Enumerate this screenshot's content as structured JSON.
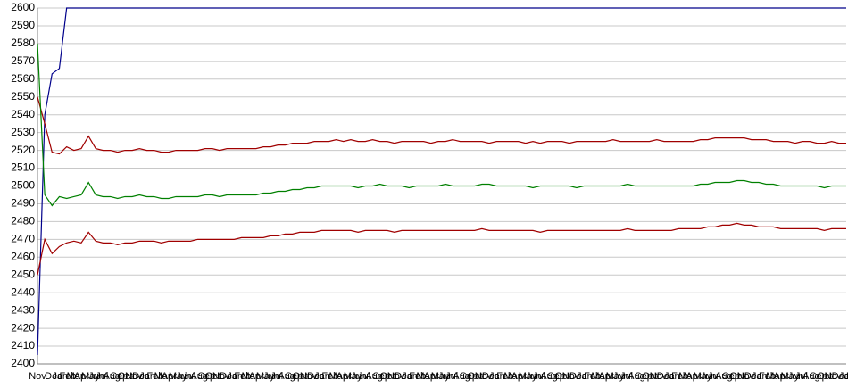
{
  "chart_data": {
    "type": "line",
    "categories": [
      "Nov",
      "Dec",
      "Jan",
      "Feb",
      "Mar",
      "Apr",
      "May",
      "Jun",
      "Jul",
      "Aug",
      "Sep",
      "Oct",
      "Nov",
      "Dec",
      "Jan",
      "Feb",
      "Mar",
      "Apr",
      "May",
      "Jun",
      "Jul",
      "Aug",
      "Sep",
      "Oct",
      "Nov",
      "Dec",
      "Jan",
      "Feb",
      "Mar",
      "Apr",
      "May",
      "Jun",
      "Jul",
      "Aug",
      "Sep",
      "Oct",
      "Nov",
      "Dec",
      "Jan",
      "Feb",
      "Mar",
      "Apr",
      "May",
      "Jun",
      "Jul",
      "Aug",
      "Sep",
      "Oct",
      "Nov",
      "Dec",
      "Jan",
      "Feb",
      "Mar",
      "Apr",
      "May",
      "Jun",
      "Jul",
      "Aug",
      "Sep",
      "Oct",
      "Nov",
      "Dec",
      "Jan",
      "Feb",
      "Mar",
      "Apr",
      "May",
      "Jun",
      "Jul",
      "Aug",
      "Sep",
      "Oct",
      "Nov",
      "Dec",
      "Jan",
      "Feb",
      "Mar",
      "Apr",
      "May",
      "Jun",
      "Jul",
      "Aug",
      "Sep",
      "Oct",
      "Nov",
      "Dec",
      "Jan",
      "Feb",
      "Mar",
      "Apr",
      "May",
      "Jun",
      "Jul",
      "Aug",
      "Sep",
      "Oct",
      "Nov",
      "Dec",
      "Jan",
      "Feb",
      "Mar",
      "Apr",
      "May",
      "Jun",
      "Jul",
      "Aug",
      "Sep",
      "Oct",
      "Nov",
      "Dec",
      "Jan",
      "Feb"
    ],
    "series": [
      {
        "color": "#00008b",
        "values": [
          2405,
          2540,
          2563,
          2566,
          2600,
          2600,
          2600,
          2600,
          2600,
          2600,
          2600,
          2600,
          2600,
          2600,
          2600,
          2600,
          2600,
          2600,
          2600,
          2600,
          2600,
          2600,
          2600,
          2600,
          2600,
          2600,
          2600,
          2600,
          2600,
          2600,
          2600,
          2600,
          2600,
          2600,
          2600,
          2600,
          2600,
          2600,
          2600,
          2600,
          2600,
          2600,
          2600,
          2600,
          2600,
          2600,
          2600,
          2600,
          2600,
          2600,
          2600,
          2600,
          2600,
          2600,
          2600,
          2600,
          2600,
          2600,
          2600,
          2600,
          2600,
          2600,
          2600,
          2600,
          2600,
          2600,
          2600,
          2600,
          2600,
          2600,
          2600,
          2600,
          2600,
          2600,
          2600,
          2600,
          2600,
          2600,
          2600,
          2600,
          2600,
          2600,
          2600,
          2600,
          2600,
          2600,
          2600,
          2600,
          2600,
          2600,
          2600,
          2600,
          2600,
          2600,
          2600,
          2600,
          2600,
          2600,
          2600,
          2600,
          2600,
          2600,
          2600,
          2600,
          2600,
          2600,
          2600,
          2600,
          2600,
          2600,
          2600,
          2600
        ]
      },
      {
        "color": "#a00000",
        "values": [
          2550,
          2535,
          2519,
          2518,
          2522,
          2520,
          2521,
          2528,
          2521,
          2520,
          2520,
          2519,
          2520,
          2520,
          2521,
          2520,
          2520,
          2519,
          2519,
          2520,
          2520,
          2520,
          2520,
          2521,
          2521,
          2520,
          2521,
          2521,
          2521,
          2521,
          2521,
          2522,
          2522,
          2523,
          2523,
          2524,
          2524,
          2524,
          2525,
          2525,
          2525,
          2526,
          2525,
          2526,
          2525,
          2525,
          2526,
          2525,
          2525,
          2524,
          2525,
          2525,
          2525,
          2525,
          2524,
          2525,
          2525,
          2526,
          2525,
          2525,
          2525,
          2525,
          2524,
          2525,
          2525,
          2525,
          2525,
          2524,
          2525,
          2524,
          2525,
          2525,
          2525,
          2524,
          2525,
          2525,
          2525,
          2525,
          2525,
          2526,
          2525,
          2525,
          2525,
          2525,
          2525,
          2526,
          2525,
          2525,
          2525,
          2525,
          2525,
          2526,
          2526,
          2527,
          2527,
          2527,
          2527,
          2527,
          2526,
          2526,
          2526,
          2525,
          2525,
          2525,
          2524,
          2525,
          2525,
          2524,
          2524,
          2525,
          2524,
          2524
        ]
      },
      {
        "color": "#008000",
        "values": [
          2580,
          2495,
          2489,
          2494,
          2493,
          2494,
          2495,
          2502,
          2495,
          2494,
          2494,
          2493,
          2494,
          2494,
          2495,
          2494,
          2494,
          2493,
          2493,
          2494,
          2494,
          2494,
          2494,
          2495,
          2495,
          2494,
          2495,
          2495,
          2495,
          2495,
          2495,
          2496,
          2496,
          2497,
          2497,
          2498,
          2498,
          2499,
          2499,
          2500,
          2500,
          2500,
          2500,
          2500,
          2499,
          2500,
          2500,
          2501,
          2500,
          2500,
          2500,
          2499,
          2500,
          2500,
          2500,
          2500,
          2501,
          2500,
          2500,
          2500,
          2500,
          2501,
          2501,
          2500,
          2500,
          2500,
          2500,
          2500,
          2499,
          2500,
          2500,
          2500,
          2500,
          2500,
          2499,
          2500,
          2500,
          2500,
          2500,
          2500,
          2500,
          2501,
          2500,
          2500,
          2500,
          2500,
          2500,
          2500,
          2500,
          2500,
          2500,
          2501,
          2501,
          2502,
          2502,
          2502,
          2503,
          2503,
          2502,
          2502,
          2501,
          2501,
          2500,
          2500,
          2500,
          2500,
          2500,
          2500,
          2499,
          2500,
          2500,
          2500
        ]
      },
      {
        "color": "#a00000",
        "values": [
          2450,
          2470,
          2462,
          2466,
          2468,
          2469,
          2468,
          2474,
          2469,
          2468,
          2468,
          2467,
          2468,
          2468,
          2469,
          2469,
          2469,
          2468,
          2469,
          2469,
          2469,
          2469,
          2470,
          2470,
          2470,
          2470,
          2470,
          2470,
          2471,
          2471,
          2471,
          2471,
          2472,
          2472,
          2473,
          2473,
          2474,
          2474,
          2474,
          2475,
          2475,
          2475,
          2475,
          2475,
          2474,
          2475,
          2475,
          2475,
          2475,
          2474,
          2475,
          2475,
          2475,
          2475,
          2475,
          2475,
          2475,
          2475,
          2475,
          2475,
          2475,
          2476,
          2475,
          2475,
          2475,
          2475,
          2475,
          2475,
          2475,
          2474,
          2475,
          2475,
          2475,
          2475,
          2475,
          2475,
          2475,
          2475,
          2475,
          2475,
          2475,
          2476,
          2475,
          2475,
          2475,
          2475,
          2475,
          2475,
          2476,
          2476,
          2476,
          2476,
          2477,
          2477,
          2478,
          2478,
          2479,
          2478,
          2478,
          2477,
          2477,
          2477,
          2476,
          2476,
          2476,
          2476,
          2476,
          2476,
          2475,
          2476,
          2476,
          2476
        ]
      }
    ],
    "ylim": [
      2400,
      2600
    ],
    "yticks": [
      2400,
      2410,
      2420,
      2430,
      2440,
      2450,
      2460,
      2470,
      2480,
      2490,
      2500,
      2510,
      2520,
      2530,
      2540,
      2550,
      2560,
      2570,
      2580,
      2590,
      2600
    ],
    "grid": true
  }
}
